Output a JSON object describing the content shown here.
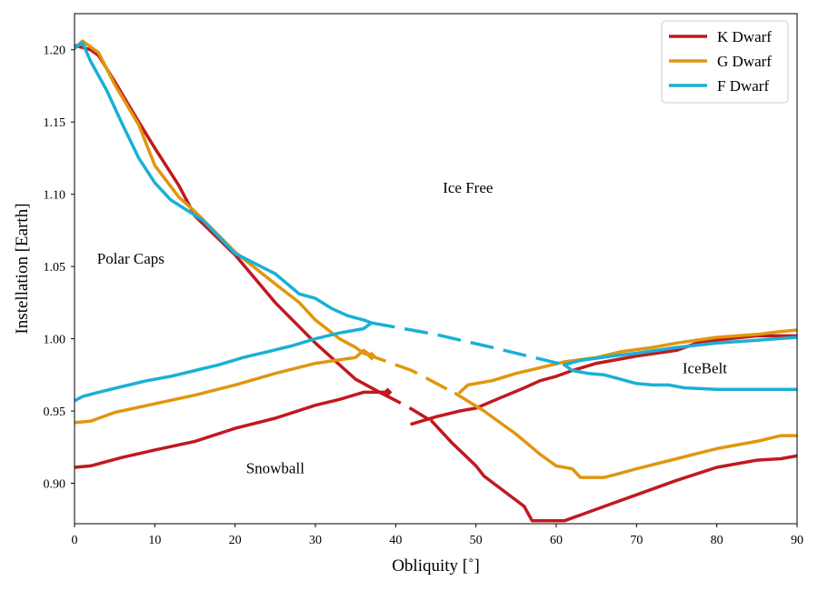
{
  "chart_data": {
    "type": "line",
    "xlabel": "Obliquity [˚]",
    "ylabel": "Instellation [Earth]",
    "xlim": [
      0,
      90
    ],
    "ylim": [
      0.872,
      1.225
    ],
    "xticks": [
      0,
      10,
      20,
      30,
      40,
      50,
      60,
      70,
      80,
      90
    ],
    "xtick_labels": [
      "0",
      "10",
      "20",
      "30",
      "40",
      "50",
      "60",
      "70",
      "80",
      "90"
    ],
    "yticks": [
      0.9,
      0.95,
      1.0,
      1.05,
      1.1,
      1.15,
      1.2
    ],
    "ytick_labels": [
      "0.90",
      "0.95",
      "1.00",
      "1.05",
      "1.10",
      "1.15",
      "1.20"
    ],
    "legend": {
      "position": "top-right",
      "entries": [
        {
          "label": "K Dwarf",
          "color": "#c0191f"
        },
        {
          "label": "G Dwarf",
          "color": "#e0960f"
        },
        {
          "label": "F Dwarf",
          "color": "#1ab0d6"
        }
      ]
    },
    "annotations": [
      {
        "text": "Ice Free",
        "x": 49,
        "y": 1.101
      },
      {
        "text": "Polar Caps",
        "x": 7,
        "y": 1.052
      },
      {
        "text": "IceBelt",
        "x": 78.5,
        "y": 0.976
      },
      {
        "text": "Snowball",
        "x": 25,
        "y": 0.907
      }
    ],
    "series": [
      {
        "name": "K Dwarf upper boundary",
        "color": "#c0191f",
        "style": "solid",
        "x": [
          0,
          2,
          3,
          5,
          8,
          10,
          13,
          15,
          20,
          25,
          30,
          35,
          38
        ],
        "y": [
          1.203,
          1.2,
          1.196,
          1.178,
          1.15,
          1.132,
          1.106,
          1.085,
          1.058,
          1.025,
          0.997,
          0.972,
          0.963
        ]
      },
      {
        "name": "K Dwarf transition",
        "color": "#c0191f",
        "style": "dashed",
        "x": [
          38,
          41.5,
          44.5
        ],
        "y": [
          0.963,
          0.953,
          0.943
        ]
      },
      {
        "name": "K Dwarf icebelt outer",
        "color": "#c0191f",
        "style": "solid",
        "x": [
          44.5,
          47,
          50,
          51,
          56,
          57,
          61,
          63,
          66,
          70,
          75,
          80,
          85,
          88,
          90
        ],
        "y": [
          0.943,
          0.928,
          0.912,
          0.905,
          0.884,
          0.874,
          0.874,
          0.878,
          0.884,
          0.892,
          0.902,
          0.911,
          0.916,
          0.917,
          0.919
        ]
      },
      {
        "name": "K Dwarf lower boundary",
        "color": "#c0191f",
        "style": "solid",
        "x": [
          0,
          2,
          6,
          10,
          15,
          20,
          25,
          30,
          33,
          36,
          39
        ],
        "y": [
          0.911,
          0.912,
          0.918,
          0.923,
          0.929,
          0.938,
          0.945,
          0.954,
          0.958,
          0.963,
          0.963
        ]
      },
      {
        "name": "K Dwarf icebelt inner",
        "color": "#c0191f",
        "style": "solid",
        "x": [
          42,
          45,
          48,
          50,
          53,
          56,
          58,
          60,
          62,
          65,
          70,
          75,
          78,
          85,
          90
        ],
        "y": [
          0.941,
          0.946,
          0.95,
          0.952,
          0.959,
          0.966,
          0.971,
          0.974,
          0.978,
          0.983,
          0.988,
          0.992,
          0.998,
          1.002,
          1.002
        ]
      },
      {
        "name": "G Dwarf upper boundary",
        "color": "#e0960f",
        "style": "solid",
        "x": [
          0,
          1,
          3,
          5,
          8,
          10,
          13,
          15,
          20,
          25,
          28,
          30,
          33,
          35,
          36
        ],
        "y": [
          1.201,
          1.206,
          1.198,
          1.176,
          1.148,
          1.12,
          1.098,
          1.088,
          1.06,
          1.038,
          1.025,
          1.013,
          1.0,
          0.994,
          0.99
        ]
      },
      {
        "name": "G Dwarf transition",
        "color": "#e0960f",
        "style": "dashed",
        "x": [
          36,
          37,
          42,
          47.5
        ],
        "y": [
          0.99,
          0.988,
          0.978,
          0.962
        ]
      },
      {
        "name": "G Dwarf icebelt outer",
        "color": "#e0960f",
        "style": "solid",
        "x": [
          47.5,
          51,
          55,
          58,
          60,
          62,
          63,
          66,
          68,
          70,
          75,
          80,
          85,
          88,
          90
        ],
        "y": [
          0.962,
          0.95,
          0.934,
          0.92,
          0.912,
          0.91,
          0.904,
          0.904,
          0.907,
          0.91,
          0.917,
          0.924,
          0.929,
          0.933,
          0.933
        ]
      },
      {
        "name": "G Dwarf lower boundary",
        "color": "#e0960f",
        "style": "solid",
        "x": [
          0,
          2,
          5,
          10,
          15,
          20,
          25,
          30,
          35,
          36,
          37
        ],
        "y": [
          0.942,
          0.943,
          0.949,
          0.955,
          0.961,
          0.968,
          0.976,
          0.983,
          0.987,
          0.992,
          0.988
        ]
      },
      {
        "name": "G Dwarf icebelt inner",
        "color": "#e0960f",
        "style": "solid",
        "x": [
          48,
          49,
          52,
          55,
          58,
          61,
          65,
          68,
          72,
          75,
          80,
          85,
          88,
          90
        ],
        "y": [
          0.963,
          0.968,
          0.971,
          0.976,
          0.98,
          0.984,
          0.987,
          0.991,
          0.994,
          0.997,
          1.001,
          1.003,
          1.005,
          1.006
        ]
      },
      {
        "name": "F Dwarf upper boundary",
        "color": "#1ab0d6",
        "style": "solid",
        "x": [
          0,
          1,
          2,
          4,
          6,
          8,
          10,
          12,
          16,
          20,
          25,
          28,
          30,
          32,
          34,
          36,
          37
        ],
        "y": [
          1.201,
          1.205,
          1.192,
          1.172,
          1.148,
          1.125,
          1.108,
          1.096,
          1.082,
          1.059,
          1.045,
          1.031,
          1.028,
          1.021,
          1.016,
          1.013,
          1.011
        ]
      },
      {
        "name": "F Dwarf transition",
        "color": "#1ab0d6",
        "style": "dashed",
        "x": [
          37,
          45,
          52,
          61
        ],
        "y": [
          1.011,
          1.003,
          0.994,
          0.982
        ]
      },
      {
        "name": "F Dwarf icebelt outer",
        "color": "#1ab0d6",
        "style": "solid",
        "x": [
          61,
          62,
          64,
          66,
          68,
          70,
          72,
          74,
          76,
          80,
          85,
          90
        ],
        "y": [
          0.982,
          0.978,
          0.976,
          0.975,
          0.972,
          0.969,
          0.968,
          0.968,
          0.966,
          0.965,
          0.965,
          0.965
        ]
      },
      {
        "name": "F Dwarf lower boundary",
        "color": "#1ab0d6",
        "style": "solid",
        "x": [
          0,
          1,
          3,
          6,
          9,
          12,
          15,
          18,
          21,
          24,
          27,
          30,
          33,
          36,
          37
        ],
        "y": [
          0.957,
          0.96,
          0.963,
          0.967,
          0.971,
          0.974,
          0.978,
          0.982,
          0.987,
          0.991,
          0.995,
          1.0,
          1.004,
          1.007,
          1.011
        ]
      },
      {
        "name": "F Dwarf icebelt inner",
        "color": "#1ab0d6",
        "style": "solid",
        "x": [
          61,
          63,
          67,
          70,
          75,
          80,
          85,
          90
        ],
        "y": [
          0.982,
          0.985,
          0.988,
          0.99,
          0.994,
          0.997,
          0.999,
          1.001
        ]
      }
    ],
    "markers": [
      {
        "series": "K Dwarf",
        "x": 39,
        "y": 0.963,
        "color": "#c0191f"
      },
      {
        "series": "G Dwarf",
        "x": 37,
        "y": 0.988,
        "color": "#e0960f"
      }
    ]
  }
}
